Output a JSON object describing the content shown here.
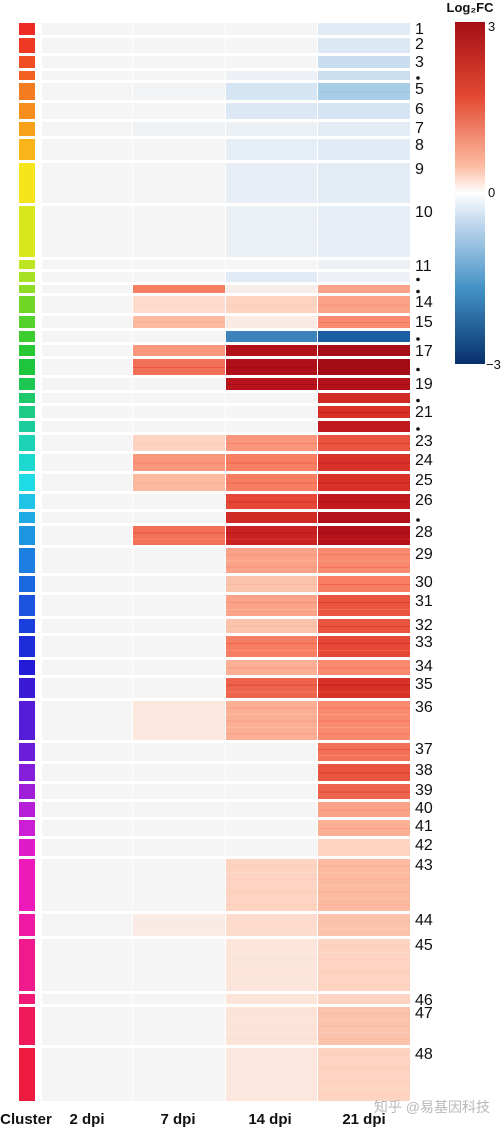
{
  "chart_data": {
    "type": "heatmap",
    "columns": [
      "2 dpi",
      "7 dpi",
      "14 dpi",
      "21 dpi"
    ],
    "row_axis_label": "Cluster",
    "colorbar": {
      "title": "Log₂FC",
      "ticks": [
        "3",
        "0",
        "−3"
      ],
      "min": -3,
      "max": 3
    },
    "clusters": [
      {
        "label": "1",
        "v": [
          0,
          0,
          0,
          -0.5
        ],
        "c": "#ee2a24"
      },
      {
        "label": "2",
        "v": [
          0,
          0,
          0,
          -0.6
        ],
        "c": "#ef3a23"
      },
      {
        "label": "3",
        "v": [
          0,
          0,
          0,
          -0.9
        ],
        "c": "#f04d22"
      },
      {
        "label": "",
        "v": [
          0,
          0,
          -0.2,
          -0.9
        ],
        "c": "#f26122"
      },
      {
        "label": "5",
        "v": [
          0,
          -0.1,
          -0.7,
          -1.3
        ],
        "c": "#f47c20"
      },
      {
        "label": "6",
        "v": [
          0,
          0,
          -0.6,
          -0.7
        ],
        "c": "#f68e1e"
      },
      {
        "label": "7",
        "v": [
          0,
          -0.15,
          -0.25,
          -0.45
        ],
        "c": "#f9a01b"
      },
      {
        "label": "8",
        "v": [
          0,
          0,
          -0.4,
          -0.5
        ],
        "c": "#f9b51a"
      },
      {
        "label": "9",
        "v": [
          0,
          0,
          -0.35,
          -0.45
        ],
        "c": "#f6e51a"
      },
      {
        "label": "10",
        "v": [
          0,
          0,
          -0.25,
          -0.35
        ],
        "c": "#d9e81d"
      },
      {
        "label": "11",
        "v": [
          0,
          0,
          0,
          -0.2
        ],
        "c": "#bde521"
      },
      {
        "label": "",
        "v": [
          0,
          0,
          -0.5,
          -0.2
        ],
        "c": "#a6e123"
      },
      {
        "label": "",
        "v": [
          0,
          1.5,
          0.2,
          1.2
        ],
        "c": "#8fdc25"
      },
      {
        "label": "14",
        "v": [
          0,
          0.6,
          0.7,
          1.2
        ],
        "c": "#6fd626"
      },
      {
        "label": "15",
        "v": [
          0,
          1,
          0.3,
          1.4
        ],
        "c": "#54d12a"
      },
      {
        "label": "",
        "v": [
          0,
          0,
          -2.2,
          -2.6
        ],
        "c": "#3ccc2d"
      },
      {
        "label": "17",
        "v": [
          0,
          1.3,
          2.6,
          2.8
        ],
        "c": "#27c831"
      },
      {
        "label": "",
        "v": [
          0,
          1.6,
          2.7,
          2.9
        ],
        "c": "#1dc53d"
      },
      {
        "label": "19",
        "v": [
          0,
          0,
          2.5,
          2.6
        ],
        "c": "#1ec654"
      },
      {
        "label": "",
        "v": [
          0,
          0,
          0,
          2.2
        ],
        "c": "#1ec96c"
      },
      {
        "label": "21",
        "v": [
          0,
          0,
          0,
          2.1
        ],
        "c": "#1dcb85"
      },
      {
        "label": "",
        "v": [
          0,
          0,
          0,
          2.4
        ],
        "c": "#1ccc9d"
      },
      {
        "label": "23",
        "v": [
          0,
          0.7,
          1.3,
          1.8
        ],
        "c": "#1cd3b6"
      },
      {
        "label": "24",
        "v": [
          0,
          1.3,
          1.5,
          2.1
        ],
        "c": "#1dd8cf"
      },
      {
        "label": "25",
        "v": [
          0,
          1,
          1.5,
          2.1
        ],
        "c": "#1edce6"
      },
      {
        "label": "26",
        "v": [
          0,
          0,
          1.9,
          2.4
        ],
        "c": "#1ec3e6"
      },
      {
        "label": "",
        "v": [
          0,
          0,
          2.2,
          2.6
        ],
        "c": "#1faae4"
      },
      {
        "label": "28",
        "v": [
          0,
          1.6,
          2.3,
          2.6
        ],
        "c": "#1f95e2"
      },
      {
        "label": "29",
        "v": [
          0,
          0,
          1.2,
          1.4
        ],
        "c": "#1d7fe0"
      },
      {
        "label": "30",
        "v": [
          0,
          0,
          0.9,
          1.5
        ],
        "c": "#1b67df"
      },
      {
        "label": "31",
        "v": [
          0,
          0,
          1.2,
          1.8
        ],
        "c": "#1a54de"
      },
      {
        "label": "32",
        "v": [
          0,
          0,
          0.9,
          1.8
        ],
        "c": "#1a40dc"
      },
      {
        "label": "33",
        "v": [
          0,
          0,
          1.5,
          1.9
        ],
        "c": "#1c2cd9"
      },
      {
        "label": "34",
        "v": [
          0,
          0,
          1.1,
          1.4
        ],
        "c": "#231bd6"
      },
      {
        "label": "35",
        "v": [
          0,
          0,
          1.7,
          2.1
        ],
        "c": "#3a1ad5"
      },
      {
        "label": "36",
        "v": [
          0,
          0.4,
          1.1,
          1.4
        ],
        "c": "#541cd7"
      },
      {
        "label": "37",
        "v": [
          0,
          0,
          0,
          1.6
        ],
        "c": "#6c1dd9"
      },
      {
        "label": "38",
        "v": [
          0,
          0,
          0,
          1.8
        ],
        "c": "#851ed9"
      },
      {
        "label": "39",
        "v": [
          0,
          0,
          0,
          1.7
        ],
        "c": "#9e1ed8"
      },
      {
        "label": "40",
        "v": [
          0,
          0,
          0,
          1.2
        ],
        "c": "#b71ed7"
      },
      {
        "label": "41",
        "v": [
          0,
          0,
          0,
          1.1
        ],
        "c": "#cb1ed5"
      },
      {
        "label": "42",
        "v": [
          0,
          0,
          0,
          0.7
        ],
        "c": "#de1dc8"
      },
      {
        "label": "43",
        "v": [
          0,
          0,
          0.7,
          1
        ],
        "c": "#eb1ab9"
      },
      {
        "label": "44",
        "v": [
          0,
          0.3,
          0.6,
          0.9
        ],
        "c": "#ee1aa4"
      },
      {
        "label": "45",
        "v": [
          0,
          0,
          0.45,
          0.7
        ],
        "c": "#ef1a8c"
      },
      {
        "label": "46",
        "v": [
          0,
          0,
          0.5,
          0.7
        ],
        "c": "#ef1a74"
      },
      {
        "label": "47",
        "v": [
          0,
          0,
          0.5,
          0.9
        ],
        "c": "#ef1a5a"
      },
      {
        "label": "48",
        "v": [
          0,
          0,
          0.4,
          0.7
        ],
        "c": "#ee1a40"
      }
    ]
  },
  "watermark": "知乎 @易基因科技"
}
